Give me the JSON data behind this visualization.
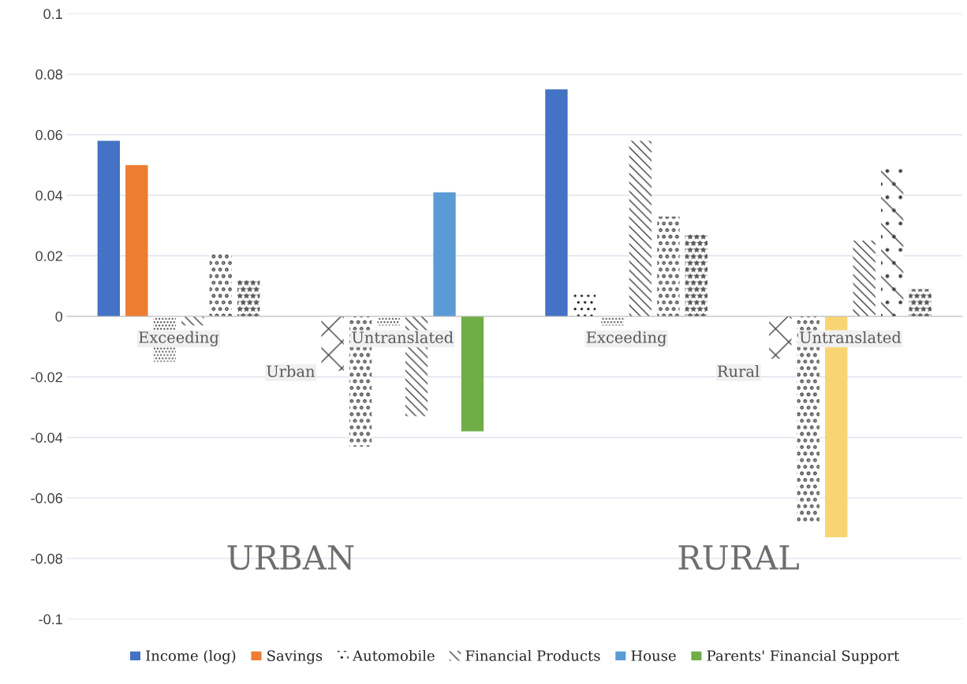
{
  "chart_data": {
    "type": "bar",
    "categories": [
      null,
      null,
      null,
      null,
      null,
      null,
      null,
      null,
      null,
      null,
      null,
      null,
      null,
      null,
      null,
      null,
      null,
      null,
      null,
      null,
      null,
      null,
      null,
      null,
      null,
      null,
      null,
      null,
      null,
      null,
      null,
      null
    ],
    "series": [
      {
        "name": "Income (log)",
        "color": "#4472c4",
        "values": [
          null,
          0.058,
          null,
          null,
          null,
          null,
          null,
          null,
          null,
          null,
          null,
          null,
          null,
          null,
          null,
          null,
          null,
          0.075,
          null,
          null,
          null,
          null,
          null,
          null,
          null,
          null,
          null,
          null,
          null,
          null,
          null,
          null
        ]
      },
      {
        "name": "Savings",
        "color": "#ed7d31",
        "values": [
          null,
          null,
          0.05,
          null,
          null,
          null,
          null,
          null,
          null,
          null,
          null,
          null,
          null,
          null,
          null,
          null,
          null,
          null,
          null,
          null,
          null,
          null,
          null,
          null,
          null,
          null,
          null,
          null,
          null,
          null,
          null,
          null
        ]
      },
      {
        "name": "Automobile",
        "color": "#000000",
        "values": [
          null,
          null,
          null,
          null,
          null,
          null,
          null,
          null,
          null,
          null,
          null,
          null,
          null,
          null,
          null,
          null,
          null,
          null,
          0.008,
          null,
          null,
          null,
          null,
          null,
          null,
          null,
          null,
          null,
          null,
          null,
          null,
          null
        ]
      },
      {
        "name": "Financial Products",
        "color": "#404040",
        "values": [
          null,
          null,
          null,
          null,
          -0.003,
          null,
          null,
          null,
          null,
          null,
          null,
          null,
          -0.033,
          null,
          null,
          null,
          null,
          null,
          null,
          null,
          0.058,
          null,
          null,
          null,
          null,
          null,
          null,
          null,
          0.025,
          null,
          null,
          null
        ]
      },
      {
        "name": "House",
        "color": "#5b9bd5",
        "values": [
          null,
          null,
          null,
          null,
          null,
          null,
          null,
          null,
          null,
          null,
          null,
          null,
          null,
          0.041,
          null,
          null,
          null,
          null,
          null,
          null,
          null,
          null,
          null,
          null,
          null,
          null,
          null,
          null,
          null,
          null,
          null,
          null
        ]
      },
      {
        "name": "Parents' Financial Support",
        "color": "#70ad47",
        "values": [
          null,
          null,
          null,
          null,
          null,
          null,
          null,
          null,
          null,
          null,
          null,
          null,
          null,
          null,
          -0.038,
          null,
          null,
          null,
          null,
          null,
          null,
          null,
          null,
          null,
          null,
          null,
          null,
          null,
          null,
          null,
          null,
          null
        ]
      },
      {
        "color": "#404040",
        "values": [
          null,
          null,
          null,
          -0.015,
          null,
          null,
          null,
          null,
          null,
          null,
          null,
          -0.003,
          null,
          null,
          null,
          null,
          null,
          null,
          null,
          -0.003,
          null,
          null,
          null,
          null,
          null,
          null,
          null,
          null,
          null,
          null,
          null,
          null
        ]
      },
      {
        "color": "#404040",
        "values": [
          null,
          null,
          null,
          null,
          null,
          0.021,
          null,
          null,
          null,
          null,
          -0.043,
          null,
          null,
          null,
          null,
          null,
          null,
          null,
          null,
          null,
          null,
          0.033,
          null,
          null,
          null,
          null,
          -0.068,
          null,
          null,
          null,
          null,
          null
        ]
      },
      {
        "color": "#595959",
        "values": [
          null,
          null,
          null,
          null,
          null,
          null,
          0.012,
          null,
          null,
          null,
          null,
          null,
          null,
          null,
          null,
          null,
          null,
          null,
          null,
          null,
          null,
          null,
          0.027,
          null,
          null,
          null,
          null,
          null,
          null,
          null,
          0.009,
          null
        ]
      },
      {
        "color": "#404040",
        "values": [
          null,
          null,
          null,
          null,
          null,
          null,
          null,
          null,
          null,
          -0.018,
          null,
          null,
          null,
          null,
          null,
          null,
          null,
          null,
          null,
          null,
          null,
          null,
          null,
          null,
          null,
          -0.014,
          null,
          null,
          null,
          null,
          null,
          null
        ]
      },
      {
        "color": "#404040",
        "values": [
          null,
          null,
          null,
          null,
          null,
          null,
          null,
          null,
          null,
          null,
          null,
          null,
          null,
          null,
          null,
          null,
          null,
          null,
          null,
          null,
          null,
          null,
          null,
          null,
          null,
          null,
          null,
          null,
          null,
          0.049,
          null,
          null
        ]
      },
      {
        "color": "#f8d572",
        "values": [
          null,
          null,
          null,
          null,
          null,
          null,
          null,
          null,
          null,
          null,
          null,
          null,
          null,
          null,
          null,
          null,
          null,
          null,
          null,
          null,
          null,
          null,
          null,
          null,
          null,
          null,
          null,
          -0.073,
          null,
          null,
          null,
          null
        ]
      }
    ],
    "ylim": [
      -0.1,
      0.1
    ],
    "yticks": [
      {
        "value": -0.1,
        "label": "-0.1"
      },
      {
        "value": -0.08,
        "label": "-0.08"
      },
      {
        "value": -0.06,
        "label": "-0.06"
      },
      {
        "value": -0.04,
        "label": "-0.04"
      },
      {
        "value": -0.02,
        "label": "-0.02"
      },
      0,
      0.02,
      0.04,
      0.06,
      0.08,
      0.1
    ],
    "grid": "y",
    "legend": "bottom",
    "annotations": [
      "Exceeding",
      "Untranslated",
      "Exceeding",
      "Untranslated",
      "Urban",
      "Rural",
      "URBAN",
      "RURAL"
    ]
  }
}
